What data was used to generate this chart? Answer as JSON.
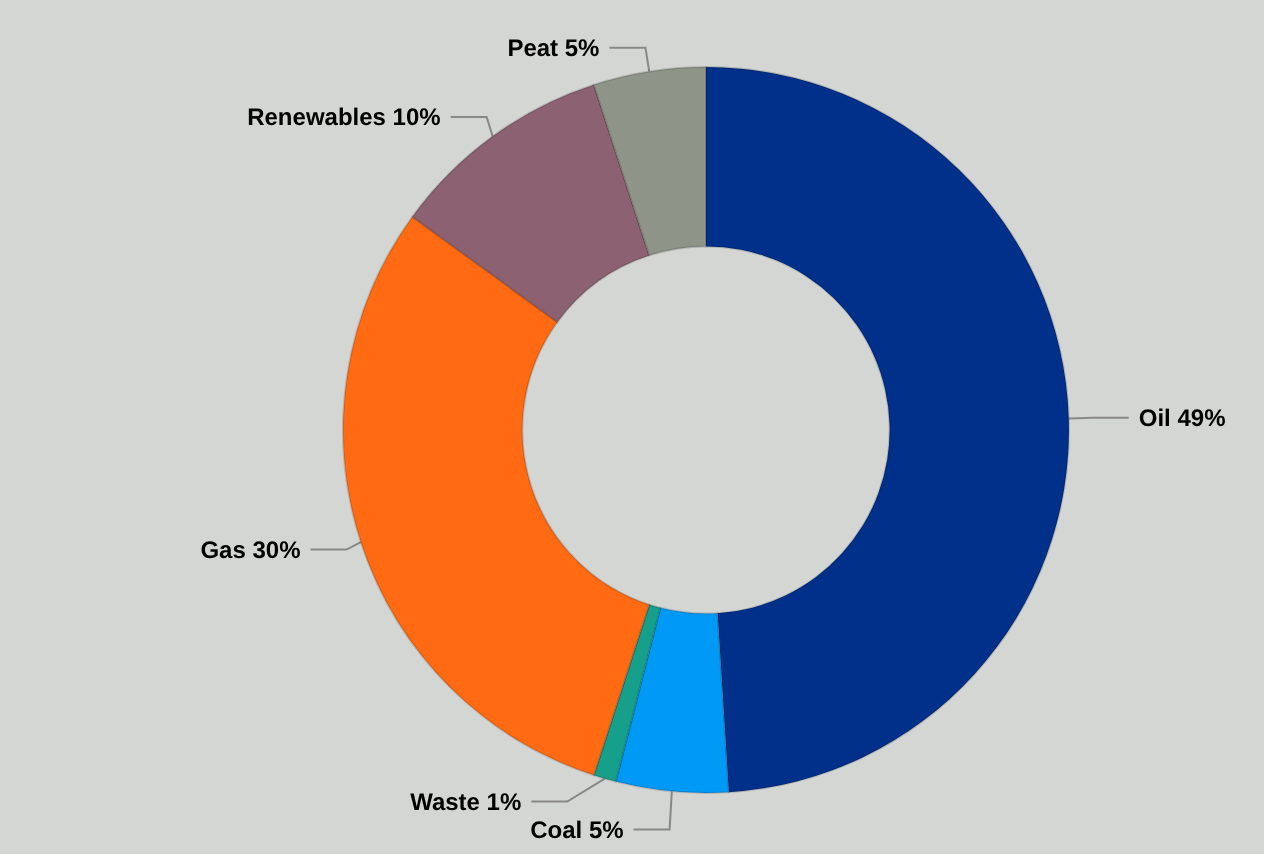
{
  "chart_data": {
    "type": "donut",
    "categories": [
      "Oil",
      "Coal",
      "Waste",
      "Gas",
      "Renewables",
      "Peat"
    ],
    "values": [
      49,
      5,
      1,
      30,
      10,
      5
    ],
    "value_labels": [
      "49%",
      "5%",
      "1%",
      "30%",
      "10%",
      "5%"
    ],
    "colors": [
      "#00308a",
      "#0099f5",
      "#16a08c",
      "#ff6a13",
      "#8c6272",
      "#8e9588"
    ],
    "legend": false
  }
}
